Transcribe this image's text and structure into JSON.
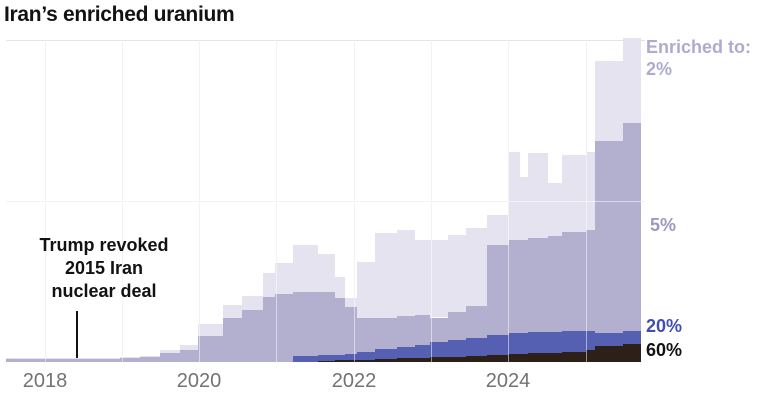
{
  "title": "Iran’s enriched uranium",
  "annotation": {
    "line1": "Trump revoked",
    "line2": "2015 Iran",
    "line3": "nuclear deal",
    "pointer_year": 2018.4
  },
  "legend": {
    "heading": "Enriched to:",
    "item_2": "2%",
    "item_5": "5%",
    "item_20": "20%",
    "item_60": "60%"
  },
  "colors": {
    "enriched_2": "#e4e3ef",
    "enriched_5": "#b2b0ce",
    "enriched_20": "#5560b2",
    "enriched_60": "#2d2019",
    "legend_heading": "#aeabd0",
    "legend_2": "#aeabd0",
    "legend_5": "#9c99bf",
    "legend_20": "#4150b0",
    "legend_60": "#121212",
    "grid": "#e4e4e4",
    "axis_label": "#737373",
    "title": "#121212"
  },
  "chart_data": {
    "type": "area",
    "subtype": "stacked-step",
    "title": "Iran’s enriched uranium",
    "legend_heading": "Enriched to:",
    "x_axis": {
      "min": 2017.5,
      "max": 2025.77,
      "data_end": 2025.72,
      "gridline_years": [
        2018,
        2019,
        2020,
        2021,
        2022,
        2023,
        2024,
        2025
      ],
      "tick_labels": [
        {
          "year": 2018,
          "label": "2018"
        },
        {
          "year": 2020,
          "label": "2020"
        },
        {
          "year": 2022,
          "label": "2022"
        },
        {
          "year": 2024,
          "label": "2024"
        }
      ]
    },
    "y_axis": {
      "unit": "relative stockpile (percent of plot height; no numeric labels shown)",
      "max": 100,
      "gridlines": [
        50,
        100
      ],
      "grid": "on"
    },
    "legend_position": "right",
    "series": [
      {
        "key": "v60",
        "label": "60%",
        "color": "#2d2019"
      },
      {
        "key": "v20",
        "label": "20%",
        "color": "#5560b2"
      },
      {
        "key": "v5",
        "label": "5%",
        "color": "#b2b0ce"
      },
      {
        "key": "v2",
        "label": "2%",
        "color": "#e4e3ef"
      }
    ],
    "stack_order": [
      "v60",
      "v20",
      "v5",
      "v2"
    ],
    "annotation": {
      "text": "Trump revoked 2015 Iran nuclear deal",
      "x": 2018.4
    },
    "steps": [
      {
        "x": 2017.5,
        "v60": 0,
        "v20": 0,
        "v5": 0.9,
        "v2": 0.3
      },
      {
        "x": 2018.98,
        "v60": 0,
        "v20": 0,
        "v5": 1.2,
        "v2": 0.3
      },
      {
        "x": 2019.23,
        "v60": 0,
        "v20": 0,
        "v5": 1.6,
        "v2": 0.3
      },
      {
        "x": 2019.49,
        "v60": 0,
        "v20": 0,
        "v5": 2.8,
        "v2": 0.9
      },
      {
        "x": 2019.75,
        "v60": 0,
        "v20": 0,
        "v5": 3.7,
        "v2": 1.6
      },
      {
        "x": 2019.98,
        "v60": 0,
        "v20": 0,
        "v5": 8.1,
        "v2": 3.7
      },
      {
        "x": 2020.31,
        "v60": 0,
        "v20": 0,
        "v5": 13.7,
        "v2": 4.0
      },
      {
        "x": 2020.55,
        "v60": 0,
        "v20": 0,
        "v5": 16.1,
        "v2": 4.3
      },
      {
        "x": 2020.82,
        "v60": 0,
        "v20": 0,
        "v5": 20.2,
        "v2": 7.5
      },
      {
        "x": 2020.98,
        "v60": 0,
        "v20": 0,
        "v5": 21.1,
        "v2": 9.6
      },
      {
        "x": 2021.21,
        "v60": 0,
        "v20": 1.9,
        "v5": 19.9,
        "v2": 14.6
      },
      {
        "x": 2021.54,
        "v60": 0.3,
        "v20": 1.9,
        "v5": 19.6,
        "v2": 11.8
      },
      {
        "x": 2021.76,
        "v60": 0.6,
        "v20": 1.6,
        "v5": 17.7,
        "v2": 6.5
      },
      {
        "x": 2021.89,
        "v60": 0.6,
        "v20": 1.9,
        "v5": 14.6,
        "v2": 2.8
      },
      {
        "x": 2022.04,
        "v60": 0.6,
        "v20": 2.5,
        "v5": 10.6,
        "v2": 17.4
      },
      {
        "x": 2022.27,
        "v60": 0.9,
        "v20": 3.1,
        "v5": 9.6,
        "v2": 26.4
      },
      {
        "x": 2022.56,
        "v60": 1.2,
        "v20": 3.4,
        "v5": 9.6,
        "v2": 26.7
      },
      {
        "x": 2022.79,
        "v60": 1.2,
        "v20": 4.0,
        "v5": 9.3,
        "v2": 23.3
      },
      {
        "x": 2022.99,
        "v60": 1.6,
        "v20": 4.7,
        "v5": 7.5,
        "v2": 24.2
      },
      {
        "x": 2023.22,
        "v60": 1.6,
        "v20": 5.3,
        "v5": 8.7,
        "v2": 23.9
      },
      {
        "x": 2023.45,
        "v60": 1.9,
        "v20": 5.6,
        "v5": 9.9,
        "v2": 24.2
      },
      {
        "x": 2023.73,
        "v60": 2.2,
        "v20": 6.2,
        "v5": 28.0,
        "v2": 9.3
      },
      {
        "x": 2024.01,
        "v60": 2.5,
        "v20": 6.5,
        "v5": 28.9,
        "v2": 27.3
      },
      {
        "x": 2024.15,
        "v60": 2.5,
        "v20": 6.5,
        "v5": 28.9,
        "v2": 19.6
      },
      {
        "x": 2024.26,
        "v60": 2.8,
        "v20": 6.5,
        "v5": 29.2,
        "v2": 26.4
      },
      {
        "x": 2024.51,
        "v60": 2.8,
        "v20": 6.5,
        "v5": 29.8,
        "v2": 16.5
      },
      {
        "x": 2024.7,
        "v60": 3.1,
        "v20": 6.5,
        "v5": 30.7,
        "v2": 23.9
      },
      {
        "x": 2025.01,
        "v60": 3.7,
        "v20": 5.9,
        "v5": 31.4,
        "v2": 24.2
      },
      {
        "x": 2025.12,
        "v60": 5.0,
        "v20": 4.0,
        "v5": 59.6,
        "v2": 24.8
      },
      {
        "x": 2025.49,
        "v60": 5.6,
        "v20": 4.0,
        "v5": 64.6,
        "v2": 26.4
      }
    ]
  }
}
